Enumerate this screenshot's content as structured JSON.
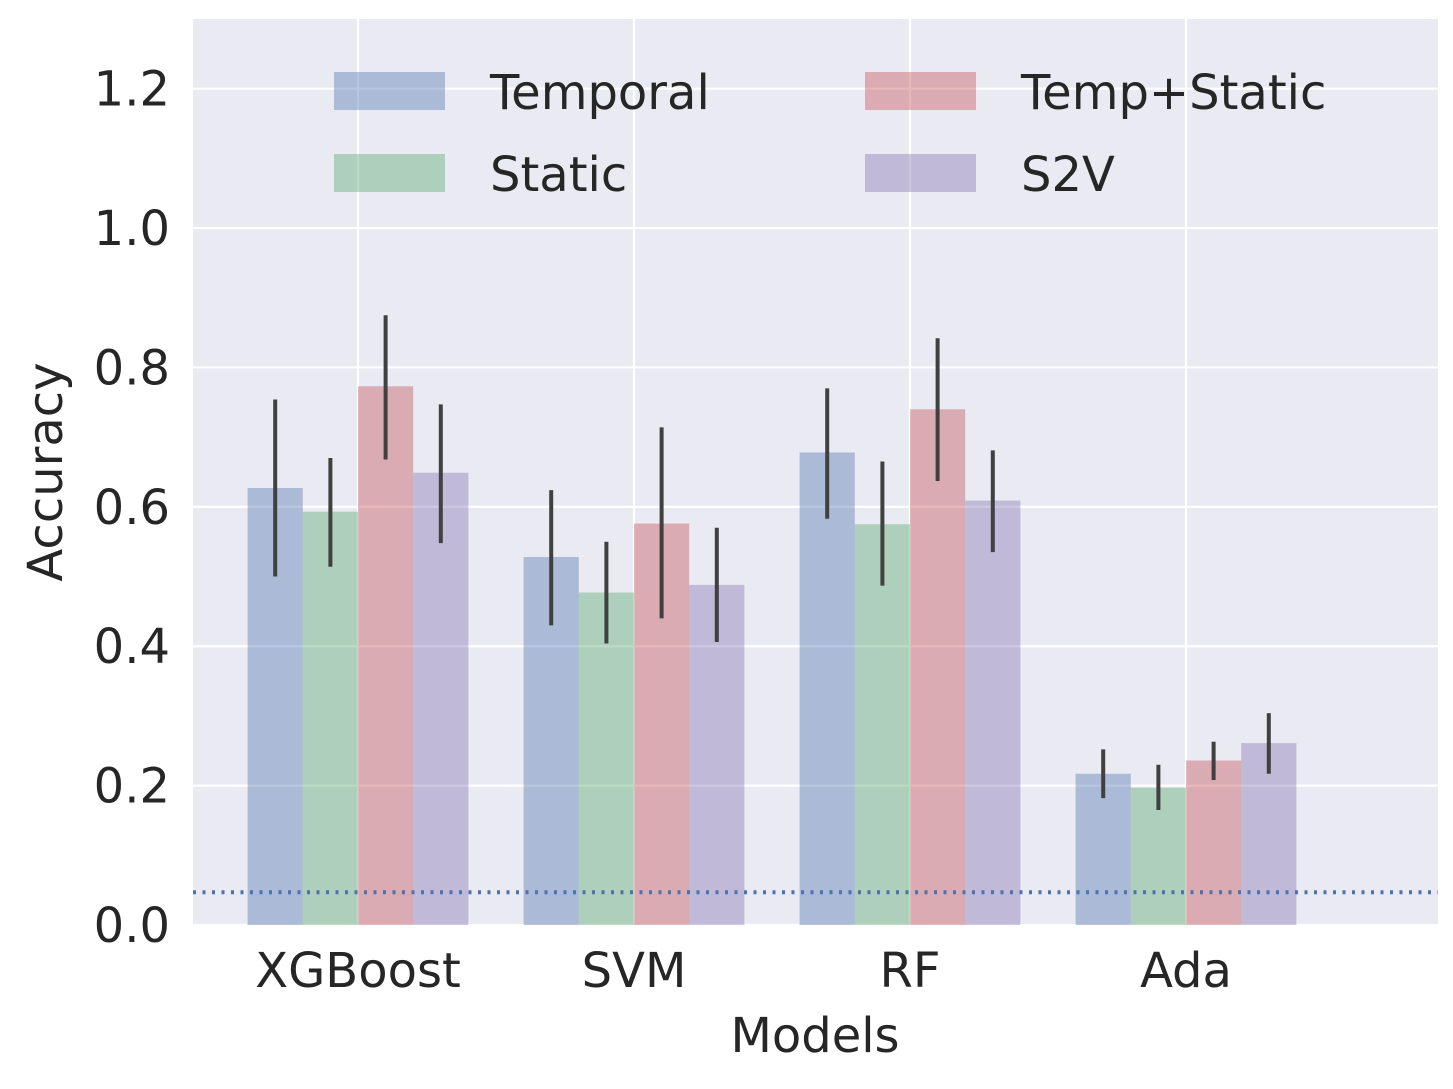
{
  "chart_data": {
    "type": "bar",
    "xlabel": "Models",
    "ylabel": "Accuracy",
    "categories": [
      "XGBoost",
      "SVM",
      "RF",
      "Ada"
    ],
    "ylim": [
      0,
      1.3
    ],
    "yticks": [
      "0.0",
      "0.2",
      "0.4",
      "0.6",
      "0.8",
      "1.0",
      "1.2"
    ],
    "grid": true,
    "legend_position": "top",
    "series": [
      {
        "name": "Temporal",
        "color": "#4c72b0",
        "values": [
          0.627,
          0.528,
          0.678,
          0.217
        ],
        "error_low": [
          0.5,
          0.43,
          0.583,
          0.182
        ],
        "error_high": [
          0.754,
          0.624,
          0.77,
          0.252
        ]
      },
      {
        "name": "Static",
        "color": "#55a868",
        "values": [
          0.593,
          0.477,
          0.575,
          0.197
        ],
        "error_low": [
          0.514,
          0.404,
          0.487,
          0.165
        ],
        "error_high": [
          0.67,
          0.55,
          0.665,
          0.23
        ]
      },
      {
        "name": "Temp+Static",
        "color": "#c44e52",
        "values": [
          0.773,
          0.576,
          0.74,
          0.236
        ],
        "error_low": [
          0.668,
          0.44,
          0.637,
          0.208
        ],
        "error_high": [
          0.875,
          0.714,
          0.842,
          0.263
        ]
      },
      {
        "name": "S2V",
        "color": "#8172b2",
        "values": [
          0.649,
          0.488,
          0.609,
          0.261
        ],
        "error_low": [
          0.548,
          0.406,
          0.535,
          0.217
        ],
        "error_high": [
          0.747,
          0.57,
          0.681,
          0.304
        ]
      }
    ],
    "baseline": 0.047,
    "baseline_color": "#4c72b0",
    "background_color": "#eaeaf2",
    "grid_color": "#ffffff",
    "errorbar_color": "#404040"
  }
}
